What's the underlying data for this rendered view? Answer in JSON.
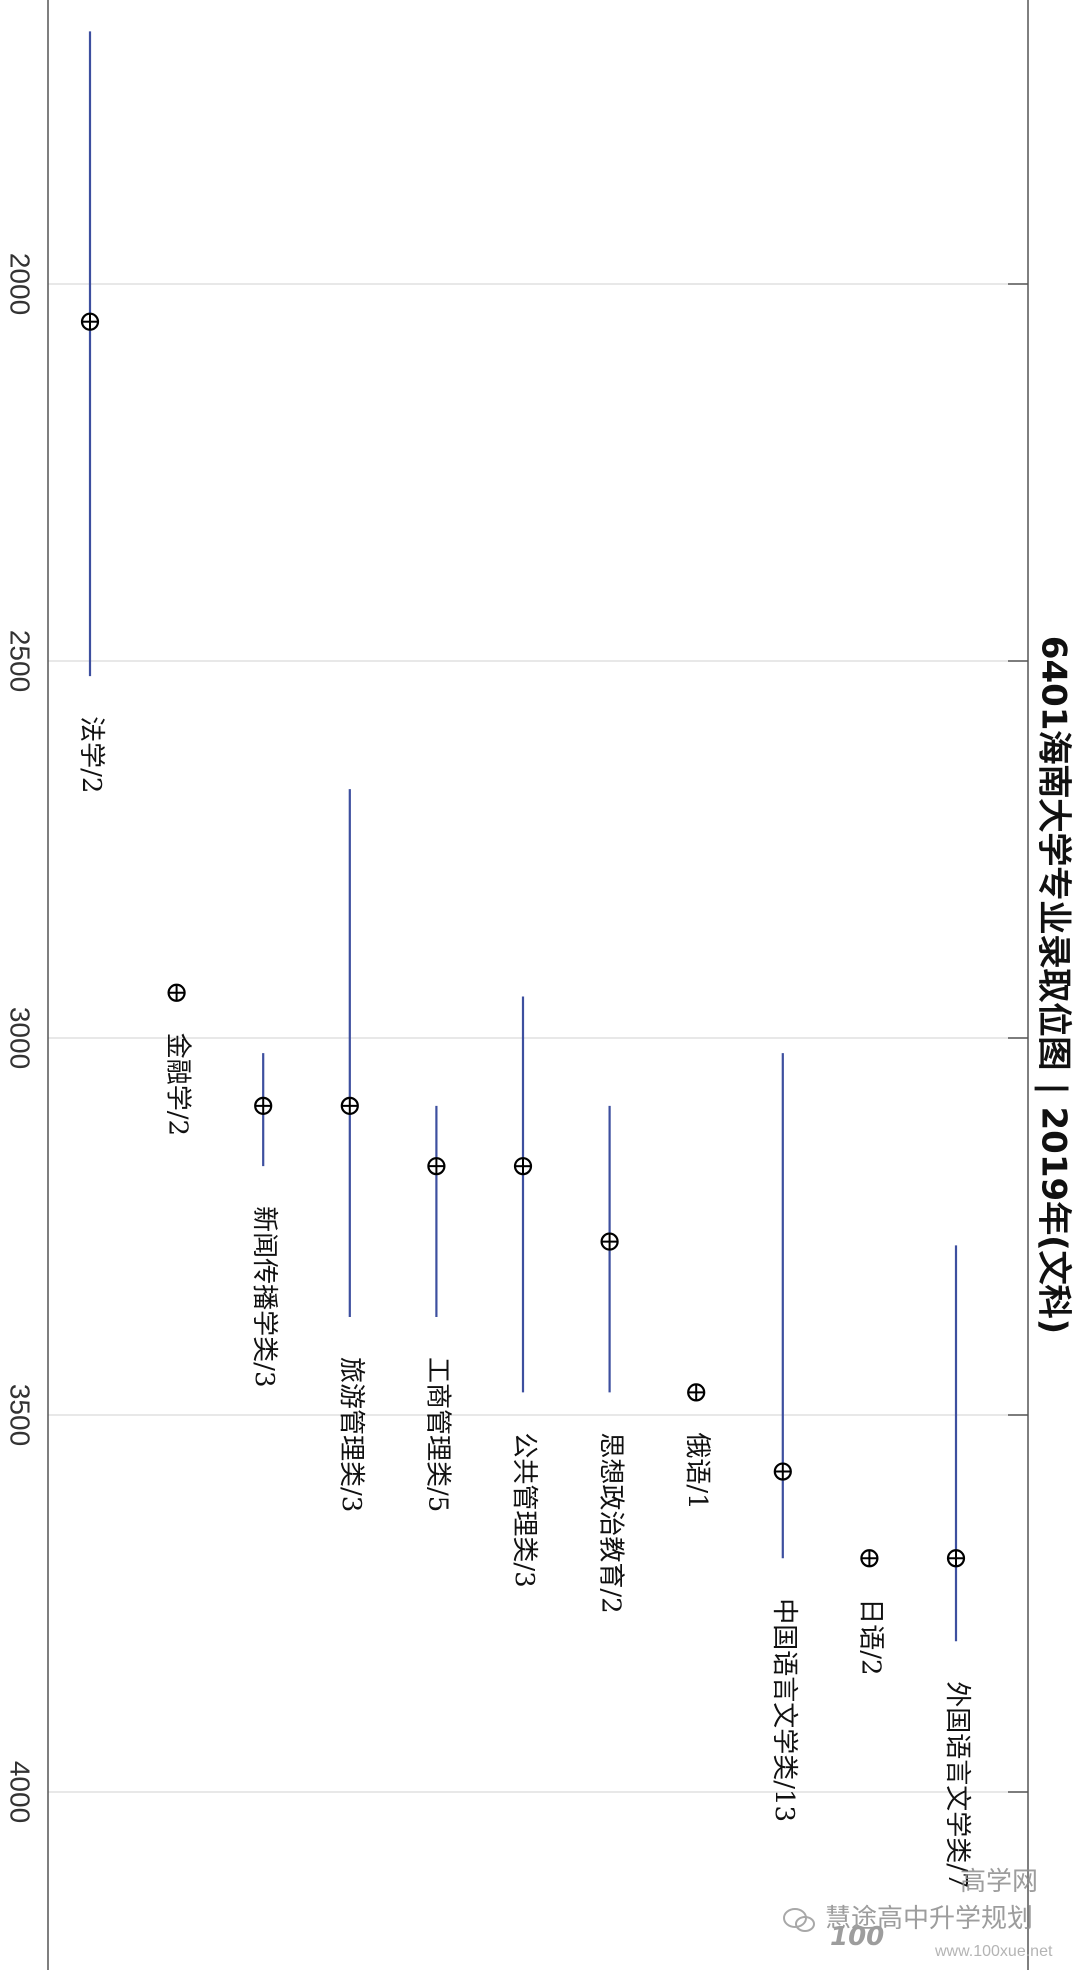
{
  "chart_data": {
    "type": "range",
    "title": "6401海南大学专业录取位图 | 2019年(文科)",
    "value_axis": {
      "ticks": [
        2000,
        2500,
        3000,
        3500,
        4000
      ],
      "range": [
        1640,
        4240
      ],
      "grid": true
    },
    "categories": [
      {
        "label": "法学/2",
        "min": 1665,
        "max": 2520,
        "marker": 2050
      },
      {
        "label": "金融学/2",
        "min": null,
        "max": null,
        "marker": 2940
      },
      {
        "label": "新闻传播学类/3",
        "min": 3020,
        "max": 3170,
        "marker": 3090
      },
      {
        "label": "旅游管理类/3",
        "min": 2670,
        "max": 3370,
        "marker": 3090
      },
      {
        "label": "工商管理类/5",
        "min": 3090,
        "max": 3370,
        "marker": 3170
      },
      {
        "label": "公共管理类/3",
        "min": 2945,
        "max": 3470,
        "marker": 3170
      },
      {
        "label": "思想政治教育/2",
        "min": 3090,
        "max": 3470,
        "marker": 3270
      },
      {
        "label": "俄语/1",
        "min": null,
        "max": null,
        "marker": 3470
      },
      {
        "label": "中国语言文学类/13",
        "min": 3020,
        "max": 3690,
        "marker": 3575
      },
      {
        "label": "日语/2",
        "min": null,
        "max": null,
        "marker": 3690
      },
      {
        "label": "外国语言文学类/7",
        "min": 3275,
        "max": 3800,
        "marker": 3690
      }
    ],
    "colors": {
      "range_line": "#3d4f9f",
      "marker": "#000000",
      "grid": "#d9d9d9",
      "frame": "#555555"
    }
  },
  "watermark": {
    "logo_text": "100",
    "brand_text": "高学网",
    "wechat_name": "慧途高中升学规划",
    "url": "www.100xue.net"
  }
}
